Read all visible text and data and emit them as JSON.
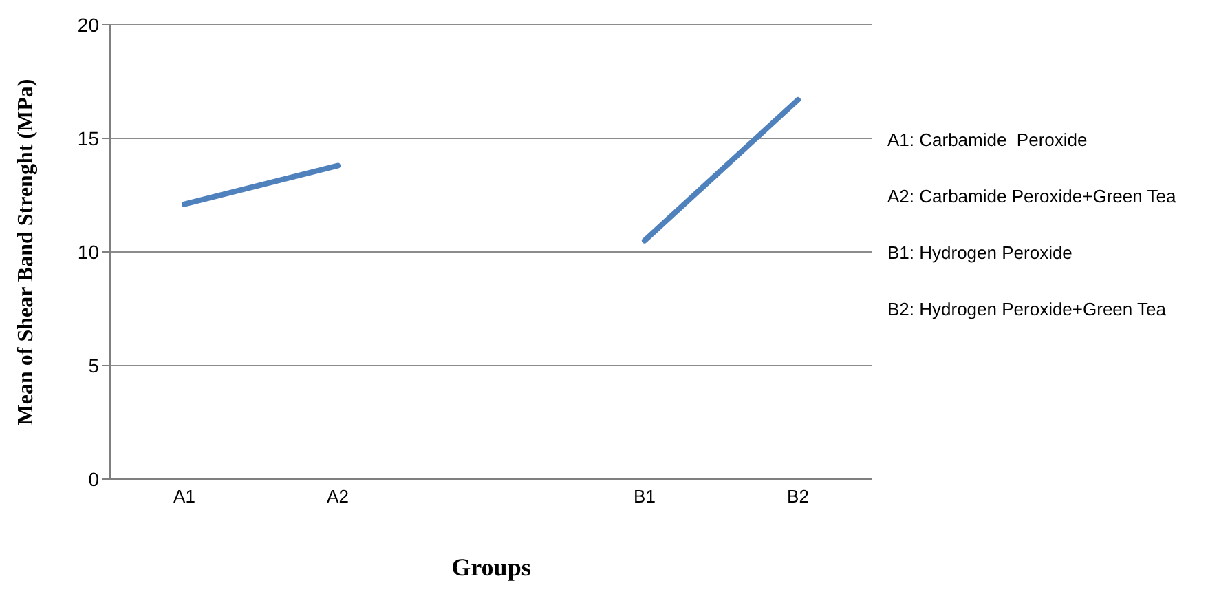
{
  "chart_data": {
    "type": "line",
    "xlabel": "Groups",
    "ylabel": "Mean of Shear Band Strenght (MPa)",
    "categories": [
      "A1",
      "A2",
      null,
      "B1",
      "B2"
    ],
    "series": [
      {
        "color": "#4f81bd",
        "values": [
          12.1,
          13.8,
          null,
          10.5,
          16.7
        ]
      }
    ],
    "ylim": [
      0,
      20
    ],
    "yticks": [
      0,
      5,
      10,
      15,
      20
    ],
    "grid": "y",
    "marker": "none",
    "line_style": "solid",
    "legend": false,
    "annotations": [
      "A1: Carbamide  Peroxide",
      "A2: Carbamide Peroxide+Green Tea",
      "B1: Hydrogen Peroxide",
      "B2: Hydrogen Peroxide+Green Tea"
    ]
  }
}
